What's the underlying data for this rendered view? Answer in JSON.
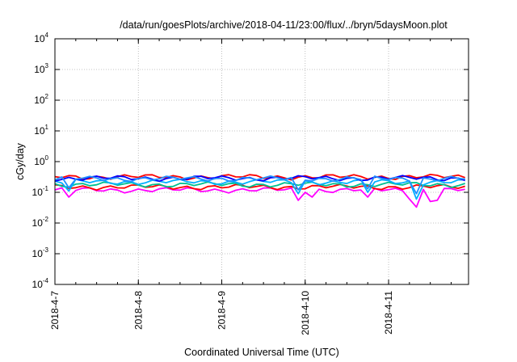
{
  "chart_data": {
    "type": "line",
    "title": "/data/run/goesPlots/archive/2018-04-11/23:00/flux/../bryn/5daysMoon.plot",
    "xlabel": "Coordinated Universal Time (UTC)",
    "ylabel": "cGy/day",
    "yscale": "log",
    "ylim": [
      0.0001,
      10000
    ],
    "y_ticks": [
      {
        "base": "10",
        "exp": "-4",
        "value": 0.0001
      },
      {
        "base": "10",
        "exp": "-3",
        "value": 0.001
      },
      {
        "base": "10",
        "exp": "-2",
        "value": 0.01
      },
      {
        "base": "10",
        "exp": "-1",
        "value": 0.1
      },
      {
        "base": "10",
        "exp": "0",
        "value": 1
      },
      {
        "base": "10",
        "exp": "1",
        "value": 10
      },
      {
        "base": "10",
        "exp": "2",
        "value": 100
      },
      {
        "base": "10",
        "exp": "3",
        "value": 1000
      },
      {
        "base": "10",
        "exp": "4",
        "value": 10000
      }
    ],
    "x_ticks": [
      "2018-4-7",
      "2018-4-8",
      "2018-4-9",
      "2018-4-10",
      "2018-4-11"
    ],
    "xlim": [
      "2018-04-07T00:00",
      "2018-04-11T23:00"
    ],
    "grid": true,
    "legend": "none",
    "series": [
      {
        "color": "#ff00ff",
        "level": 0.12,
        "spikes": [
          [
            "2018-04-07T04:00",
            0.07
          ],
          [
            "2018-04-08T21:00",
            0.06
          ],
          [
            "2018-04-09T22:00",
            0.055
          ],
          [
            "2018-04-10T02:00",
            0.07
          ],
          [
            "2018-04-10T18:00",
            0.07
          ],
          [
            "2018-04-11T06:00",
            0.06
          ],
          [
            "2018-04-11T08:00",
            0.033
          ],
          [
            "2018-04-11T12:00",
            0.05
          ],
          [
            "2018-04-11T14:00",
            0.055
          ]
        ]
      },
      {
        "color": "#ff0000",
        "level": 0.15,
        "spikes": []
      },
      {
        "color": "#00c090",
        "level": 0.18,
        "spikes": []
      },
      {
        "color": "#00b0ff",
        "level": 0.22,
        "spikes": [
          [
            "2018-04-07T04:00",
            0.11
          ],
          [
            "2018-04-09T22:00",
            0.09
          ],
          [
            "2018-04-10T18:00",
            0.1
          ],
          [
            "2018-04-11T08:00",
            0.06
          ]
        ]
      },
      {
        "color": "#ff0000",
        "level": 0.32,
        "spikes": []
      },
      {
        "color": "#0000ff",
        "level": 0.29,
        "spikes": []
      },
      {
        "color": "#2090ff",
        "level": 0.28,
        "spikes": [
          [
            "2018-04-07T04:00",
            0.14
          ],
          [
            "2018-04-09T22:00",
            0.12
          ],
          [
            "2018-04-10T18:00",
            0.13
          ],
          [
            "2018-04-11T08:00",
            0.09
          ]
        ]
      }
    ]
  }
}
